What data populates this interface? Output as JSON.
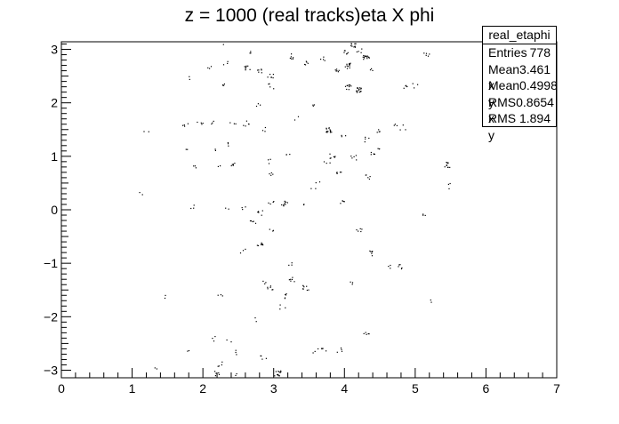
{
  "chart_data": {
    "type": "scatter",
    "title": "z = 1000 (real tracks)eta X phi",
    "xlim": [
      0,
      7
    ],
    "ylim": [
      -3.14159,
      3.14159
    ],
    "x_ticks": [
      0,
      1,
      2,
      3,
      4,
      5,
      6,
      7
    ],
    "y_ticks": [
      -3,
      -2,
      -1,
      0,
      1,
      2,
      3
    ],
    "x_tick_labels": [
      "0",
      "1",
      "2",
      "3",
      "4",
      "5",
      "6",
      "7"
    ],
    "y_tick_labels": [
      "−3",
      "−2",
      "−1",
      "0",
      "1",
      "2",
      "3"
    ],
    "grid": false,
    "marker_color": "#000000",
    "clusters": [
      [
        2.27,
        3.12,
        3
      ],
      [
        4.12,
        3.08,
        10
      ],
      [
        4.2,
        2.98,
        4
      ],
      [
        4.0,
        2.95,
        6
      ],
      [
        2.65,
        2.98,
        3
      ],
      [
        3.25,
        2.88,
        6
      ],
      [
        3.45,
        2.75,
        5
      ],
      [
        3.7,
        2.82,
        4
      ],
      [
        4.3,
        2.85,
        14
      ],
      [
        4.05,
        2.7,
        12
      ],
      [
        3.9,
        2.62,
        6
      ],
      [
        5.15,
        2.9,
        5
      ],
      [
        2.1,
        2.7,
        3
      ],
      [
        2.32,
        2.76,
        3
      ],
      [
        2.62,
        2.65,
        8
      ],
      [
        2.8,
        2.62,
        6
      ],
      [
        2.28,
        2.35,
        4
      ],
      [
        2.95,
        2.5,
        6
      ],
      [
        2.95,
        2.32,
        4
      ],
      [
        1.78,
        2.45,
        2
      ],
      [
        4.05,
        2.3,
        10
      ],
      [
        4.2,
        2.25,
        16
      ],
      [
        4.85,
        2.32,
        5
      ],
      [
        5.0,
        2.32,
        3
      ],
      [
        2.76,
        1.95,
        3
      ],
      [
        3.55,
        1.95,
        3
      ],
      [
        1.75,
        1.62,
        4
      ],
      [
        1.95,
        1.6,
        4
      ],
      [
        2.1,
        1.65,
        3
      ],
      [
        2.42,
        1.62,
        3
      ],
      [
        2.6,
        1.62,
        5
      ],
      [
        2.85,
        1.52,
        3
      ],
      [
        3.78,
        1.5,
        14
      ],
      [
        3.98,
        1.38,
        3
      ],
      [
        4.5,
        1.48,
        4
      ],
      [
        4.82,
        1.55,
        3
      ],
      [
        1.2,
        1.5,
        2
      ],
      [
        4.3,
        1.32,
        4
      ],
      [
        2.35,
        1.25,
        3
      ],
      [
        1.75,
        1.1,
        2
      ],
      [
        4.5,
        1.15,
        3
      ],
      [
        4.38,
        1.05,
        5
      ],
      [
        4.12,
        0.98,
        5
      ],
      [
        3.82,
        1.02,
        6
      ],
      [
        3.2,
        1.05,
        3
      ],
      [
        2.15,
        1.1,
        2
      ],
      [
        2.4,
        0.88,
        5
      ],
      [
        2.92,
        0.92,
        3
      ],
      [
        3.75,
        0.92,
        3
      ],
      [
        5.45,
        0.85,
        10
      ],
      [
        1.9,
        0.8,
        3
      ],
      [
        2.2,
        0.85,
        2
      ],
      [
        2.95,
        0.7,
        4
      ],
      [
        3.92,
        0.68,
        5
      ],
      [
        4.32,
        0.62,
        5
      ],
      [
        5.45,
        0.45,
        3
      ],
      [
        3.62,
        0.55,
        2
      ],
      [
        3.55,
        0.42,
        2
      ],
      [
        1.12,
        0.32,
        2
      ],
      [
        3.15,
        0.12,
        9
      ],
      [
        2.95,
        0.12,
        4
      ],
      [
        3.38,
        0.15,
        2
      ],
      [
        3.95,
        0.15,
        5
      ],
      [
        1.85,
        0.05,
        3
      ],
      [
        2.32,
        0.0,
        2
      ],
      [
        2.55,
        0.05,
        3
      ],
      [
        2.8,
        -0.05,
        5
      ],
      [
        2.7,
        -0.2,
        5
      ],
      [
        4.2,
        -0.38,
        5
      ],
      [
        2.95,
        -0.35,
        3
      ],
      [
        5.1,
        -0.12,
        3
      ],
      [
        2.8,
        -0.62,
        8
      ],
      [
        2.55,
        -0.75,
        3
      ],
      [
        4.35,
        -0.8,
        6
      ],
      [
        4.8,
        -1.05,
        5
      ],
      [
        4.65,
        -1.05,
        3
      ],
      [
        3.25,
        -1.0,
        3
      ],
      [
        4.1,
        -1.35,
        3
      ],
      [
        3.25,
        -1.3,
        6
      ],
      [
        3.45,
        -1.45,
        8
      ],
      [
        2.95,
        -1.45,
        6
      ],
      [
        3.15,
        -1.6,
        5
      ],
      [
        2.25,
        -1.55,
        3
      ],
      [
        1.5,
        -1.6,
        2
      ],
      [
        2.85,
        -1.35,
        3
      ],
      [
        5.25,
        -1.7,
        2
      ],
      [
        3.12,
        -1.8,
        3
      ],
      [
        2.75,
        -2.05,
        2
      ],
      [
        4.3,
        -2.3,
        5
      ],
      [
        2.15,
        -2.4,
        3
      ],
      [
        2.35,
        -2.45,
        2
      ],
      [
        3.7,
        -2.6,
        4
      ],
      [
        3.58,
        -2.62,
        3
      ],
      [
        3.92,
        -2.62,
        4
      ],
      [
        1.8,
        -2.65,
        2
      ],
      [
        2.45,
        -2.65,
        3
      ],
      [
        2.85,
        -2.75,
        4
      ],
      [
        2.25,
        -2.88,
        4
      ],
      [
        1.35,
        -2.95,
        2
      ],
      [
        2.2,
        -3.05,
        5
      ],
      [
        3.05,
        -3.05,
        12
      ],
      [
        2.45,
        -3.1,
        3
      ],
      [
        4.7,
        1.6,
        3
      ],
      [
        3.3,
        1.72,
        2
      ],
      [
        4.4,
        2.6,
        3
      ]
    ]
  },
  "stats": {
    "name": "real_etaphi",
    "entries_label": "Entries",
    "entries_value": "778",
    "meanx_label": "Mean x",
    "meanx_value": "3.461",
    "meany_label": "Mean y",
    "meany_value": "0.4998",
    "rmsx_label": "RMS x",
    "rmsx_value": "0.8654",
    "rmsy_label": "RMS y",
    "rmsy_value": "1.894"
  }
}
